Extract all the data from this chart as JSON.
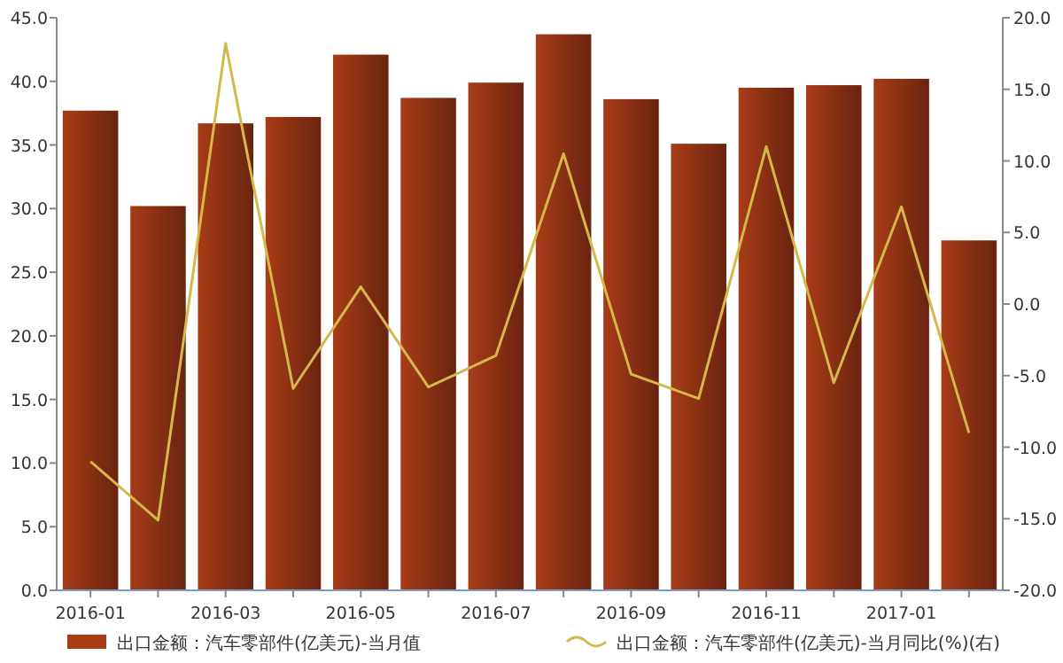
{
  "chart_data": {
    "type": "bar",
    "categories": [
      "2016-01",
      null,
      "2016-03",
      null,
      "2016-05",
      null,
      "2016-07",
      null,
      "2016-09",
      null,
      "2016-11",
      null,
      "2017-01",
      null
    ],
    "series": [
      {
        "name": "出口金额：汽车零部件(亿美元)-当月值",
        "color": "#a83c17",
        "values": [
          37.7,
          30.2,
          36.7,
          37.2,
          42.1,
          38.7,
          39.9,
          43.7,
          38.6,
          35.1,
          39.5,
          39.7,
          40.2,
          27.5
        ]
      },
      {
        "name": "出口金额：汽车零部件(亿美元)-当月同比(%)(右)",
        "type": "line",
        "axis": "y2",
        "color": "#d4b84a",
        "values": [
          -11.0,
          -15.1,
          18.2,
          -5.9,
          1.2,
          -5.8,
          -3.6,
          10.5,
          -4.9,
          -6.6,
          11.0,
          -5.5,
          6.8,
          -9.0
        ]
      }
    ],
    "ylim": [
      0,
      45
    ],
    "yticks": [
      {
        "value": 0,
        "label": "0.0"
      },
      {
        "value": 5,
        "label": "5.0"
      },
      {
        "value": 10,
        "label": "10.0"
      },
      {
        "value": 15,
        "label": "15.0"
      },
      {
        "value": 20,
        "label": "20.0"
      },
      {
        "value": 25,
        "label": "25.0"
      },
      {
        "value": 30,
        "label": "30.0"
      },
      {
        "value": 35,
        "label": "35.0"
      },
      {
        "value": 40,
        "label": "40.0"
      },
      {
        "value": 45,
        "label": "45.0"
      }
    ],
    "y2lim": [
      -20,
      20
    ],
    "y2ticks": [
      {
        "value": -20,
        "label": "-20.0"
      },
      {
        "value": -15,
        "label": "-15.0"
      },
      {
        "value": -10,
        "label": "-10.0"
      },
      {
        "value": -5,
        "label": "-5.0"
      },
      {
        "value": 0,
        "label": "0.0"
      },
      {
        "value": 5,
        "label": "5.0"
      },
      {
        "value": 10,
        "label": "10.0"
      },
      {
        "value": 15,
        "label": "15.0"
      },
      {
        "value": 20,
        "label": "20.0"
      }
    ],
    "legend": "bottom"
  }
}
